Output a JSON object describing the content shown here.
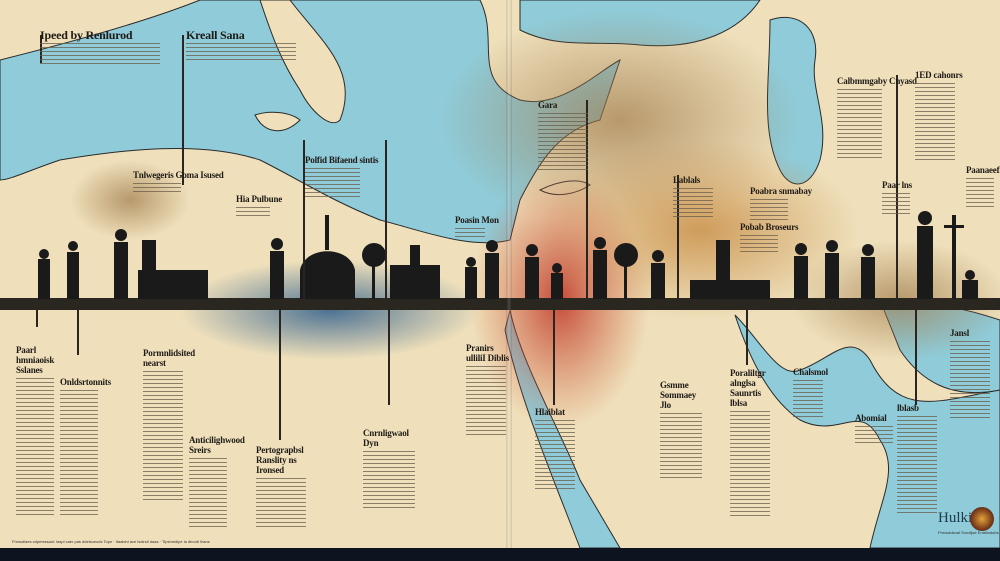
{
  "colors": {
    "sea": "#8fcbd8",
    "land": "#efe0bb",
    "ochre": "#c9904a",
    "red": "#c0392b",
    "ink_blue": "#2f5e8c",
    "silhouette": "#1a1a1a"
  },
  "headings": [
    {
      "id": "h1",
      "title": "Ipeed by Renlurod"
    },
    {
      "id": "h2",
      "title": "Kreall Sana"
    },
    {
      "id": "h3",
      "title": "Gara"
    },
    {
      "id": "h4",
      "title": "Polfid Bifaend sintis"
    },
    {
      "id": "h5",
      "title": "Tnlwegeris Goma Isused"
    },
    {
      "id": "h6",
      "title": "Hia Pulbune"
    },
    {
      "id": "h7",
      "title": "Poasin Mon"
    },
    {
      "id": "h8",
      "title": "Calbmmgaby Cnyasd"
    },
    {
      "id": "h9",
      "title": "1ED cahonrs"
    },
    {
      "id": "h10",
      "title": "Lablals"
    },
    {
      "id": "h11",
      "title": "Poabra snmabay"
    },
    {
      "id": "h12",
      "title": "Pobab Broseurs"
    },
    {
      "id": "h13",
      "title": "Paar lns"
    },
    {
      "id": "h14",
      "title": "Paanaeeflos"
    },
    {
      "id": "h15",
      "title": "Paarl hmniaoisk Sslanes"
    },
    {
      "id": "h16",
      "title": "Onldsrtonnits"
    },
    {
      "id": "h17",
      "title": "Pormnlidsited nearst"
    },
    {
      "id": "h18",
      "title": "Anticilighwood Sreirs"
    },
    {
      "id": "h19",
      "title": "Pertograpbsl Ranslity ns Ironsed"
    },
    {
      "id": "h20",
      "title": "Cnrnligwaol Dyn"
    },
    {
      "id": "h21",
      "title": "Pranirs ulliliI Diblis"
    },
    {
      "id": "h22",
      "title": "Hlaiblat"
    },
    {
      "id": "h23",
      "title": "Gsmme Sommaey Jlo"
    },
    {
      "id": "h24",
      "title": "Poraliltgr alnglsa Saunrtis lblsa"
    },
    {
      "id": "h25",
      "title": "Chalsmol"
    },
    {
      "id": "h26",
      "title": "Abomial"
    },
    {
      "id": "h27",
      "title": "lblasb"
    },
    {
      "id": "h28",
      "title": "Jansl"
    }
  ],
  "logo": {
    "text": "Hulkibus",
    "subtitle": "Prmsaldsnal Sondljae Enisbodahs"
  },
  "footer": "Fhmsdlaes cdpmessaol: laspl caer pas ddelsoeods Topn · Itaabinl ace lsdindi daas · Tlpshmdlpe la dbordi lhans"
}
